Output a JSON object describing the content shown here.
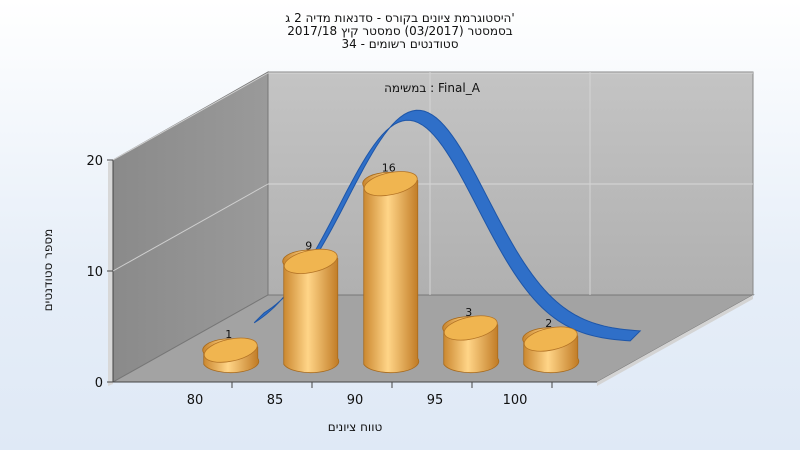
{
  "chart_data": {
    "type": "bar",
    "title_lines": [
      "היסטוגרמת ציונים בקורס - סדנאות מדיה 2 ג'",
      "בסמסטר  (03/2017)  סמסטר קיץ 2017/18",
      "סטודנטים רשומים - 34"
    ],
    "annotation": "במשימה : Final_A",
    "xlabel": "טווח ציונים",
    "ylabel": "מספר סטודנטים",
    "categories": [
      "80",
      "85",
      "90",
      "95",
      "100"
    ],
    "x_ticks": [
      "80",
      "85",
      "90",
      "95",
      "100"
    ],
    "values": [
      1,
      9,
      16,
      3,
      2
    ],
    "y_ticks": [
      "0",
      "10",
      "20"
    ],
    "ylim": [
      0,
      20
    ],
    "grid": true,
    "bar_color": "#e8a84a",
    "curve_color": "#2f6fc8"
  }
}
